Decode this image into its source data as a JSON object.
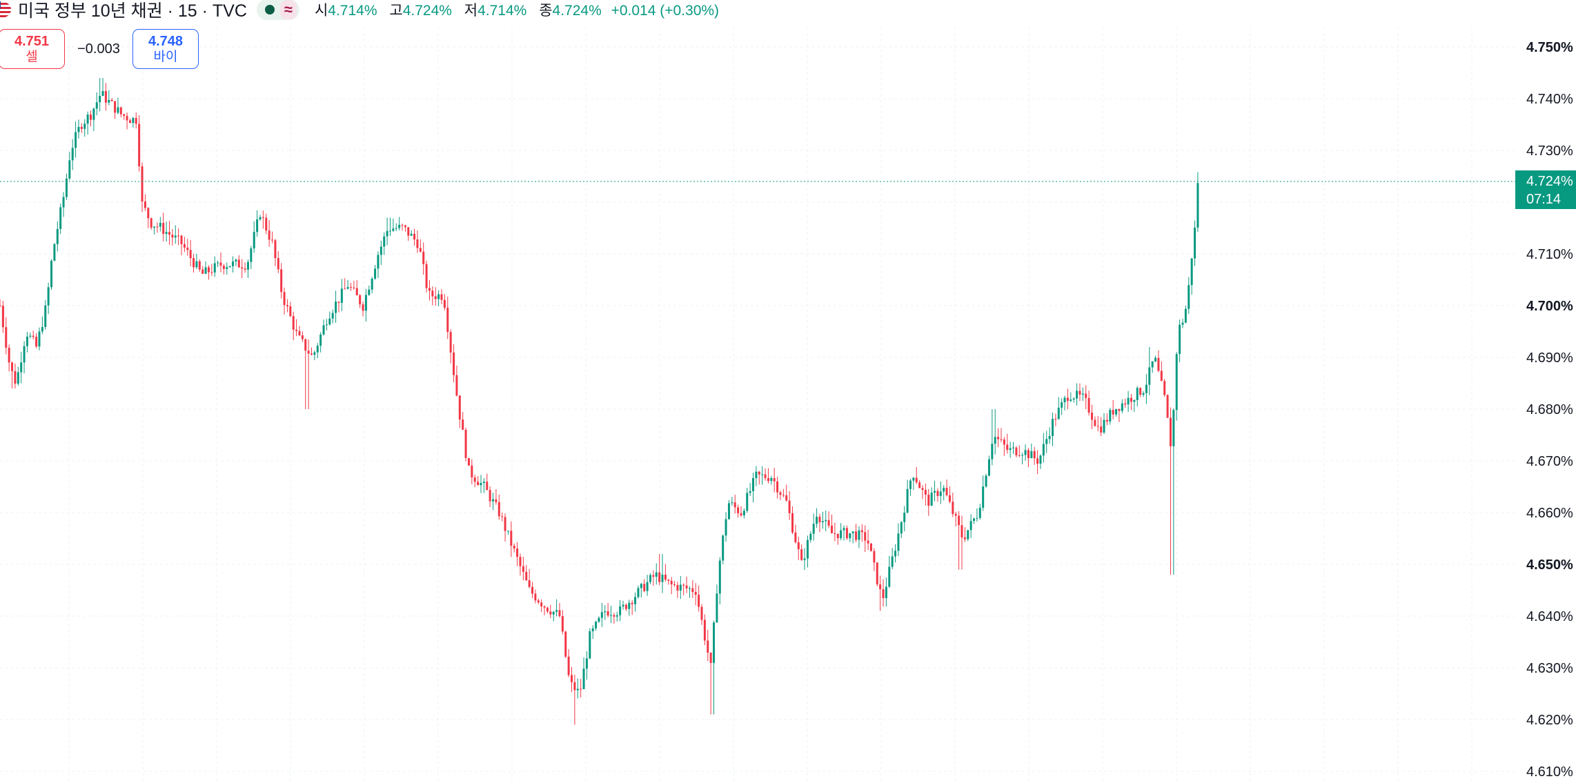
{
  "header": {
    "title": "미국 정부 10년 채권 · 15 · TVC",
    "ohlc": {
      "open_label": "시",
      "open": "4.714%",
      "high_label": "고",
      "high": "4.724%",
      "low_label": "저",
      "low": "4.714%",
      "close_label": "종",
      "close": "4.724%",
      "change": "+0.014 (+0.30%)"
    },
    "approx_symbol": "≈"
  },
  "trade": {
    "sell_price": "4.751",
    "sell_label": "셀",
    "spread": "−0.003",
    "buy_price": "4.748",
    "buy_label": "바이"
  },
  "colors": {
    "up": "#089981",
    "down": "#f23645",
    "buy": "#2962ff",
    "sell": "#f23645"
  },
  "chart_data": {
    "type": "candlestick",
    "symbol": "TVC",
    "interval": "15",
    "y_axis": {
      "ticks": [
        4.75,
        4.74,
        4.73,
        4.72,
        4.71,
        4.7,
        4.69,
        4.68,
        4.67,
        4.66,
        4.65,
        4.64,
        4.63,
        4.62,
        4.61
      ],
      "tick_labels": [
        "4.750%",
        "4.740%",
        "4.730%",
        "",
        "4.710%",
        "4.700%",
        "4.690%",
        "4.680%",
        "4.670%",
        "4.660%",
        "4.650%",
        "4.640%",
        "4.630%",
        "4.620%",
        "4.610%"
      ],
      "bold_ticks": [
        4.75,
        4.7,
        4.65
      ],
      "ylim": [
        4.6085,
        4.7595
      ]
    },
    "grid": true,
    "last_price": {
      "value": 4.724,
      "label": "4.724%",
      "countdown": "07:14"
    },
    "close_path": [
      [
        0,
        4.7
      ],
      [
        10,
        4.688
      ],
      [
        16,
        4.685
      ],
      [
        26,
        4.695
      ],
      [
        36,
        4.692
      ],
      [
        46,
        4.7
      ],
      [
        52,
        4.71
      ],
      [
        58,
        4.716
      ],
      [
        64,
        4.722
      ],
      [
        70,
        4.73
      ],
      [
        80,
        4.735
      ],
      [
        90,
        4.737
      ],
      [
        100,
        4.741
      ],
      [
        110,
        4.739
      ],
      [
        120,
        4.737
      ],
      [
        130,
        4.736
      ],
      [
        136,
        4.736
      ],
      [
        140,
        4.72
      ],
      [
        150,
        4.716
      ],
      [
        160,
        4.715
      ],
      [
        180,
        4.712
      ],
      [
        200,
        4.706
      ],
      [
        220,
        4.708
      ],
      [
        245,
        4.708
      ],
      [
        258,
        4.718
      ],
      [
        270,
        4.712
      ],
      [
        280,
        4.702
      ],
      [
        295,
        4.694
      ],
      [
        310,
        4.69
      ],
      [
        325,
        4.698
      ],
      [
        345,
        4.704
      ],
      [
        360,
        4.7
      ],
      [
        375,
        4.71
      ],
      [
        385,
        4.715
      ],
      [
        400,
        4.715
      ],
      [
        415,
        4.712
      ],
      [
        425,
        4.702
      ],
      [
        440,
        4.702
      ],
      [
        448,
        4.69
      ],
      [
        455,
        4.68
      ],
      [
        465,
        4.668
      ],
      [
        480,
        4.665
      ],
      [
        495,
        4.66
      ],
      [
        505,
        4.655
      ],
      [
        515,
        4.65
      ],
      [
        525,
        4.645
      ],
      [
        540,
        4.642
      ],
      [
        555,
        4.64
      ],
      [
        565,
        4.627
      ],
      [
        575,
        4.625
      ],
      [
        585,
        4.636
      ],
      [
        600,
        4.641
      ],
      [
        615,
        4.641
      ],
      [
        630,
        4.644
      ],
      [
        650,
        4.648
      ],
      [
        665,
        4.646
      ],
      [
        690,
        4.645
      ],
      [
        705,
        4.63
      ],
      [
        712,
        4.648
      ],
      [
        722,
        4.662
      ],
      [
        735,
        4.66
      ],
      [
        750,
        4.667
      ],
      [
        765,
        4.667
      ],
      [
        780,
        4.662
      ],
      [
        795,
        4.65
      ],
      [
        810,
        4.66
      ],
      [
        825,
        4.656
      ],
      [
        845,
        4.656
      ],
      [
        860,
        4.655
      ],
      [
        875,
        4.643
      ],
      [
        890,
        4.655
      ],
      [
        905,
        4.668
      ],
      [
        920,
        4.662
      ],
      [
        935,
        4.665
      ],
      [
        955,
        4.655
      ],
      [
        970,
        4.66
      ],
      [
        985,
        4.675
      ],
      [
        1000,
        4.672
      ],
      [
        1015,
        4.672
      ],
      [
        1030,
        4.67
      ],
      [
        1045,
        4.678
      ],
      [
        1060,
        4.683
      ],
      [
        1075,
        4.682
      ],
      [
        1090,
        4.676
      ],
      [
        1105,
        4.68
      ],
      [
        1120,
        4.682
      ],
      [
        1135,
        4.684
      ],
      [
        1145,
        4.69
      ],
      [
        1155,
        4.682
      ],
      [
        1162,
        4.672
      ],
      [
        1168,
        4.695
      ],
      [
        1175,
        4.698
      ],
      [
        1180,
        4.705
      ],
      [
        1183,
        4.712
      ],
      [
        1186,
        4.716
      ],
      [
        1188,
        4.724
      ]
    ],
    "high_points": [
      [
        100,
        4.744
      ],
      [
        385,
        4.717
      ],
      [
        655,
        4.652
      ],
      [
        750,
        4.669
      ],
      [
        985,
        4.68
      ],
      [
        1068,
        4.685
      ],
      [
        1140,
        4.692
      ],
      [
        1188,
        4.724
      ]
    ],
    "low_points": [
      [
        14,
        4.684
      ],
      [
        305,
        4.68
      ],
      [
        570,
        4.619
      ],
      [
        706,
        4.621
      ],
      [
        873,
        4.641
      ],
      [
        952,
        4.649
      ],
      [
        1163,
        4.648
      ]
    ]
  }
}
